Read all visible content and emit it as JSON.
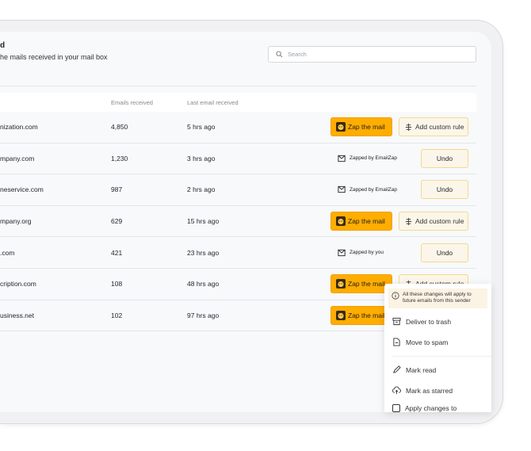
{
  "header": {
    "title": "d",
    "subtitle": "he mails received in your mail box"
  },
  "search": {
    "placeholder": "Search"
  },
  "table": {
    "columns": [
      "",
      "Emails received",
      "Last email received"
    ],
    "rows": [
      {
        "domain": "nization.com",
        "emails": "4,850",
        "last": "5 hrs ago",
        "state": "actions"
      },
      {
        "domain": "mpany.com",
        "emails": "1,230",
        "last": "3 hrs ago",
        "state": "zapped",
        "zapped_label": "Zapped by EmailZap"
      },
      {
        "domain": "neservice.com",
        "emails": "987",
        "last": "2 hrs ago",
        "state": "zapped",
        "zapped_label": "Zapped by EmailZap"
      },
      {
        "domain": "mpany.org",
        "emails": "629",
        "last": "15 hrs ago",
        "state": "actions"
      },
      {
        "domain": ".com",
        "emails": "421",
        "last": "23 hrs ago",
        "state": "zapped",
        "zapped_label": "Zapped by you"
      },
      {
        "domain": "cription.com",
        "emails": "108",
        "last": "48 hrs ago",
        "state": "actions"
      },
      {
        "domain": "usiness.net",
        "emails": "102",
        "last": "97 hrs ago",
        "state": "actions"
      }
    ]
  },
  "buttons": {
    "zap": "Zap the mail",
    "rule": "Add custom rule",
    "undo": "Undo"
  },
  "menu": {
    "note": "All these changes will apply to future emails from this sender",
    "items": [
      "Deliver to trash",
      "Move to spam",
      "Mark read",
      "Mark as starred",
      "Apply changes to"
    ]
  },
  "colors": {
    "accent": "#ffad00",
    "rule_bg": "#fbf6e9"
  }
}
